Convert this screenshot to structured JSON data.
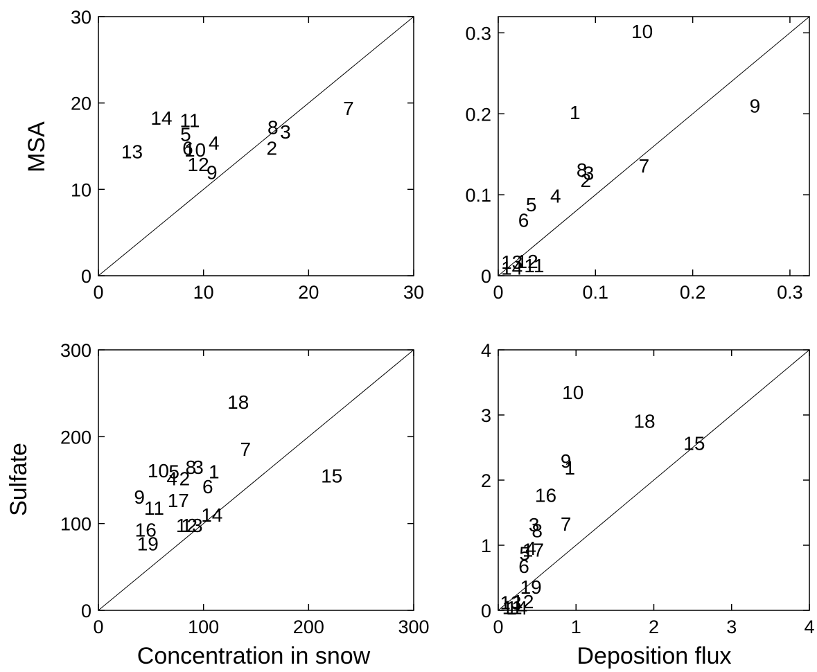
{
  "figure": {
    "ylabel_top": "MSA",
    "ylabel_bottom": "Sulfate",
    "xlabel_left": "Concentration in snow",
    "xlabel_right": "Deposition flux"
  },
  "chart_data": [
    {
      "type": "scatter",
      "marker": "text-label",
      "xlim": [
        0,
        30
      ],
      "ylim": [
        0,
        30
      ],
      "xticks": [
        "0",
        "10",
        "20",
        "30"
      ],
      "yticks": [
        "0",
        "10",
        "20",
        "30"
      ],
      "xlabel": "",
      "ylabel": "MSA",
      "identity_line": true,
      "points": [
        {
          "label": "14",
          "x": 6.0,
          "y": 18.3
        },
        {
          "label": "11",
          "x": 8.7,
          "y": 18.0
        },
        {
          "label": "5",
          "x": 8.3,
          "y": 16.4
        },
        {
          "label": "13",
          "x": 3.2,
          "y": 14.4
        },
        {
          "label": "6",
          "x": 8.5,
          "y": 14.8
        },
        {
          "label": "10",
          "x": 9.2,
          "y": 14.6
        },
        {
          "label": "4",
          "x": 11.0,
          "y": 15.4
        },
        {
          "label": "12",
          "x": 9.5,
          "y": 12.9
        },
        {
          "label": "9",
          "x": 10.8,
          "y": 12.0
        },
        {
          "label": "2",
          "x": 16.5,
          "y": 14.8
        },
        {
          "label": "8",
          "x": 16.6,
          "y": 17.2
        },
        {
          "label": "3",
          "x": 17.8,
          "y": 16.7
        },
        {
          "label": "7",
          "x": 23.8,
          "y": 19.4
        }
      ]
    },
    {
      "type": "scatter",
      "marker": "text-label",
      "xlim": [
        0,
        0.32
      ],
      "ylim": [
        0,
        0.32
      ],
      "xticks": [
        "0",
        "0.1",
        "0.2",
        "0.3"
      ],
      "yticks": [
        "0",
        "0.1",
        "0.2",
        "0.3"
      ],
      "xlabel": "",
      "ylabel": "",
      "identity_line": true,
      "points": [
        {
          "label": "10",
          "x": 0.148,
          "y": 0.302
        },
        {
          "label": "1",
          "x": 0.079,
          "y": 0.202
        },
        {
          "label": "9",
          "x": 0.264,
          "y": 0.21
        },
        {
          "label": "8",
          "x": 0.086,
          "y": 0.131
        },
        {
          "label": "3",
          "x": 0.093,
          "y": 0.127
        },
        {
          "label": "2",
          "x": 0.09,
          "y": 0.118
        },
        {
          "label": "7",
          "x": 0.15,
          "y": 0.136
        },
        {
          "label": "4",
          "x": 0.059,
          "y": 0.099
        },
        {
          "label": "5",
          "x": 0.034,
          "y": 0.088
        },
        {
          "label": "6",
          "x": 0.026,
          "y": 0.069
        },
        {
          "label": "13",
          "x": 0.014,
          "y": 0.017
        },
        {
          "label": "12",
          "x": 0.03,
          "y": 0.018
        },
        {
          "label": "14",
          "x": 0.014,
          "y": 0.01
        },
        {
          "label": "11",
          "x": 0.037,
          "y": 0.013
        }
      ]
    },
    {
      "type": "scatter",
      "marker": "text-label",
      "xlim": [
        0,
        300
      ],
      "ylim": [
        0,
        300
      ],
      "xticks": [
        "0",
        "100",
        "200",
        "300"
      ],
      "yticks": [
        "0",
        "100",
        "200",
        "300"
      ],
      "xlabel": "Concentration in snow",
      "ylabel": "Sulfate",
      "identity_line": true,
      "points": [
        {
          "label": "18",
          "x": 133,
          "y": 240
        },
        {
          "label": "7",
          "x": 140,
          "y": 186
        },
        {
          "label": "15",
          "x": 222,
          "y": 155
        },
        {
          "label": "10",
          "x": 57,
          "y": 161
        },
        {
          "label": "5",
          "x": 72,
          "y": 160
        },
        {
          "label": "8",
          "x": 88,
          "y": 165
        },
        {
          "label": "3",
          "x": 95,
          "y": 165
        },
        {
          "label": "1",
          "x": 110,
          "y": 160
        },
        {
          "label": "4",
          "x": 70,
          "y": 152
        },
        {
          "label": "2",
          "x": 82,
          "y": 152
        },
        {
          "label": "6",
          "x": 104,
          "y": 143
        },
        {
          "label": "9",
          "x": 39,
          "y": 131
        },
        {
          "label": "17",
          "x": 76,
          "y": 127
        },
        {
          "label": "11",
          "x": 53,
          "y": 118
        },
        {
          "label": "14",
          "x": 108,
          "y": 110
        },
        {
          "label": "12",
          "x": 84,
          "y": 98
        },
        {
          "label": "13",
          "x": 89,
          "y": 98
        },
        {
          "label": "16",
          "x": 45,
          "y": 93
        },
        {
          "label": "19",
          "x": 47,
          "y": 77
        }
      ]
    },
    {
      "type": "scatter",
      "marker": "text-label",
      "xlim": [
        0,
        4
      ],
      "ylim": [
        0,
        4
      ],
      "xticks": [
        "0",
        "1",
        "2",
        "3",
        "4"
      ],
      "yticks": [
        "0",
        "1",
        "2",
        "3",
        "4"
      ],
      "xlabel": "Deposition flux",
      "ylabel": "",
      "identity_line": true,
      "points": [
        {
          "label": "10",
          "x": 0.96,
          "y": 3.35
        },
        {
          "label": "18",
          "x": 1.88,
          "y": 2.91
        },
        {
          "label": "15",
          "x": 2.52,
          "y": 2.57
        },
        {
          "label": "9",
          "x": 0.87,
          "y": 2.3
        },
        {
          "label": "1",
          "x": 0.92,
          "y": 2.19
        },
        {
          "label": "16",
          "x": 0.61,
          "y": 1.77
        },
        {
          "label": "3",
          "x": 0.46,
          "y": 1.32
        },
        {
          "label": "8",
          "x": 0.5,
          "y": 1.23
        },
        {
          "label": "7",
          "x": 0.87,
          "y": 1.33
        },
        {
          "label": "4",
          "x": 0.42,
          "y": 0.96
        },
        {
          "label": "17",
          "x": 0.45,
          "y": 0.93
        },
        {
          "label": "5",
          "x": 0.34,
          "y": 0.88
        },
        {
          "label": "6",
          "x": 0.33,
          "y": 0.68
        },
        {
          "label": "19",
          "x": 0.42,
          "y": 0.36
        },
        {
          "label": "13",
          "x": 0.16,
          "y": 0.12
        },
        {
          "label": "12",
          "x": 0.32,
          "y": 0.14
        },
        {
          "label": "11",
          "x": 0.18,
          "y": 0.05
        },
        {
          "label": "14",
          "x": 0.24,
          "y": 0.04
        }
      ]
    }
  ]
}
